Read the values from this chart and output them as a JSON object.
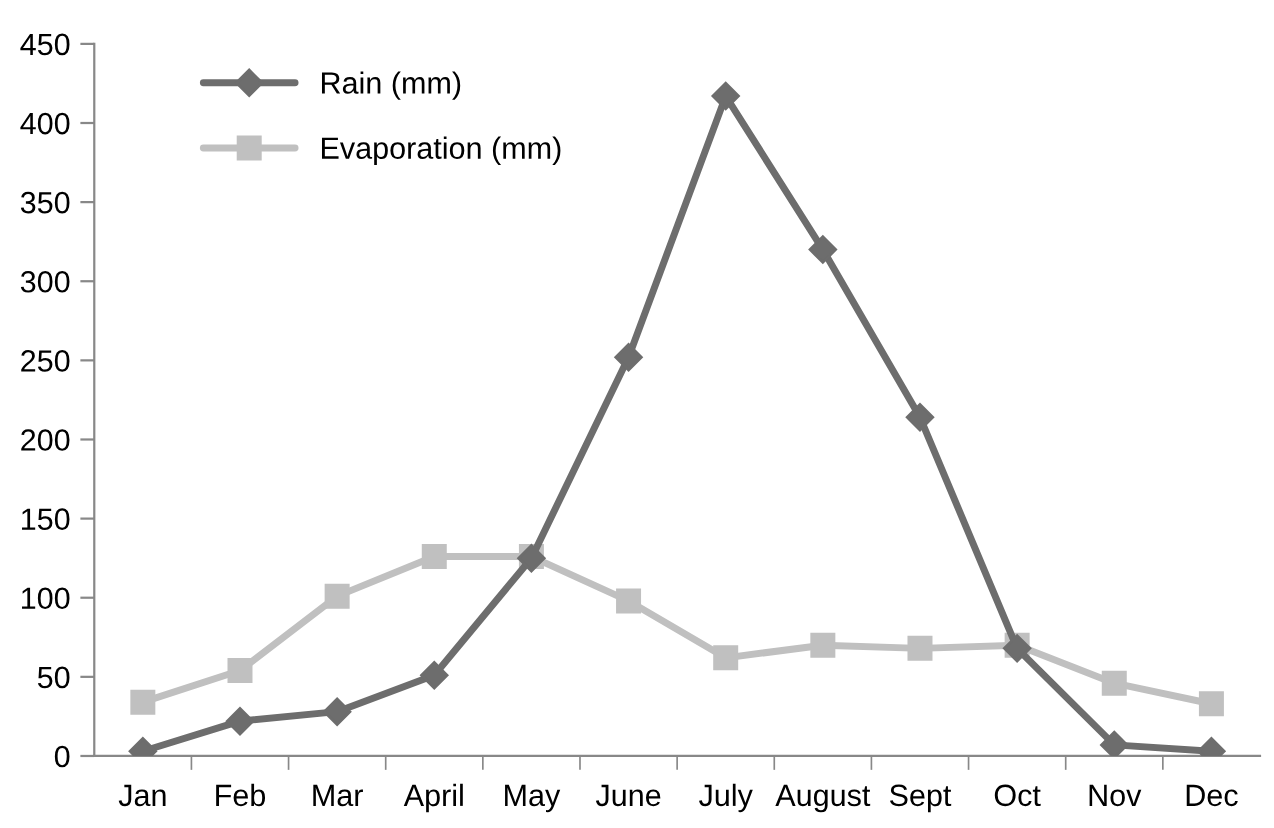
{
  "chart_data": {
    "type": "line",
    "categories": [
      "Jan",
      "Feb",
      "Mar",
      "April",
      "May",
      "June",
      "July",
      "August",
      "Sept",
      "Oct",
      "Nov",
      "Dec"
    ],
    "series": [
      {
        "name": "Rain (mm)",
        "color": "#6d6d6d",
        "marker": "diamond",
        "values": [
          3,
          22,
          28,
          51,
          125,
          252,
          417,
          320,
          214,
          68,
          7,
          3
        ]
      },
      {
        "name": "Evaporation (mm)",
        "color": "#c0c0c0",
        "marker": "square",
        "values": [
          34,
          54,
          101,
          126,
          126,
          98,
          62,
          70,
          68,
          70,
          46,
          33
        ]
      }
    ],
    "ylim": [
      0,
      450
    ],
    "yticks": [
      0,
      50,
      100,
      150,
      200,
      250,
      300,
      350,
      400,
      450
    ],
    "grid": false,
    "legend": "top left"
  }
}
